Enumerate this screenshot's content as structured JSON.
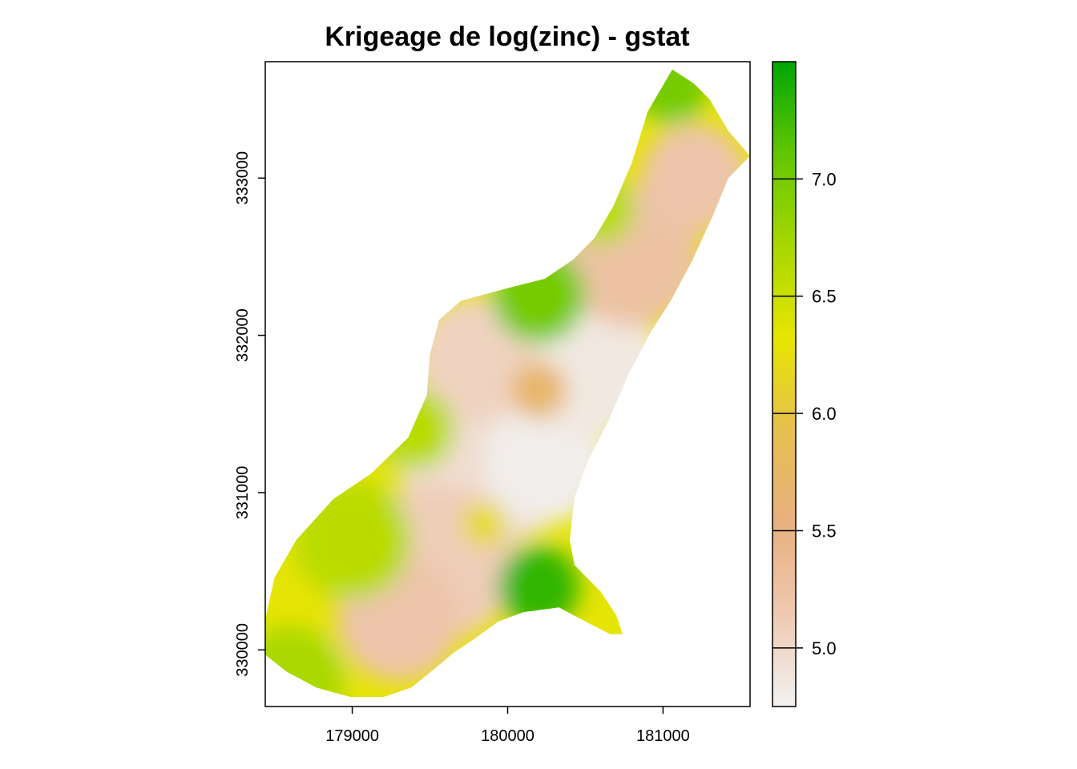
{
  "chart_data": {
    "type": "heatmap",
    "title": "Krigeage de log(zinc) - gstat",
    "xlabel": "",
    "ylabel": "",
    "xlim": [
      178440,
      181560
    ],
    "ylim": [
      329640,
      333740
    ],
    "x_ticks": [
      179000,
      180000,
      181000
    ],
    "x_tick_labels": [
      "179000",
      "180000",
      "181000"
    ],
    "y_ticks": [
      330000,
      331000,
      332000,
      333000
    ],
    "y_tick_labels": [
      "330000",
      "331000",
      "332000",
      "333000"
    ],
    "color_scale": {
      "zlim": [
        4.75,
        7.5
      ],
      "ticks": [
        5.0,
        5.5,
        6.0,
        6.5,
        7.0
      ],
      "tick_labels": [
        "5.0",
        "5.5",
        "6.0",
        "6.5",
        "7.0"
      ],
      "colors": [
        "#F2F2F2",
        "#EEC9B1",
        "#E8B07F",
        "#E6BF50",
        "#E6E600",
        "#A8D700",
        "#63C600",
        "#00A600"
      ]
    },
    "region_outline": [
      [
        181060,
        333690
      ],
      [
        181200,
        333600
      ],
      [
        181300,
        333500
      ],
      [
        181420,
        333300
      ],
      [
        181560,
        333140
      ],
      [
        181420,
        333000
      ],
      [
        181320,
        332760
      ],
      [
        181190,
        332480
      ],
      [
        181050,
        332220
      ],
      [
        180920,
        332020
      ],
      [
        180780,
        331760
      ],
      [
        180650,
        331460
      ],
      [
        180520,
        331210
      ],
      [
        180430,
        330970
      ],
      [
        180400,
        330700
      ],
      [
        180430,
        330540
      ],
      [
        180600,
        330370
      ],
      [
        180700,
        330220
      ],
      [
        180740,
        330100
      ],
      [
        180660,
        330100
      ],
      [
        180520,
        330170
      ],
      [
        180330,
        330270
      ],
      [
        180100,
        330240
      ],
      [
        179940,
        330180
      ],
      [
        179800,
        330080
      ],
      [
        179650,
        329980
      ],
      [
        179530,
        329880
      ],
      [
        179380,
        329760
      ],
      [
        179200,
        329700
      ],
      [
        178990,
        329700
      ],
      [
        178770,
        329760
      ],
      [
        178580,
        329860
      ],
      [
        178440,
        329970
      ],
      [
        178440,
        330200
      ],
      [
        178500,
        330460
      ],
      [
        178640,
        330700
      ],
      [
        178880,
        330960
      ],
      [
        179120,
        331120
      ],
      [
        179360,
        331350
      ],
      [
        179480,
        331620
      ],
      [
        179500,
        331880
      ],
      [
        179560,
        332100
      ],
      [
        179700,
        332220
      ],
      [
        180000,
        332300
      ],
      [
        180240,
        332360
      ],
      [
        180420,
        332480
      ],
      [
        180560,
        332620
      ],
      [
        180680,
        332820
      ],
      [
        180800,
        333100
      ],
      [
        180900,
        333420
      ]
    ],
    "kriged_surface": [
      {
        "x": 179880,
        "y": 331250,
        "r": 600,
        "value": 4.95
      },
      {
        "x": 180250,
        "y": 331200,
        "r": 400,
        "value": 4.8
      },
      {
        "x": 180550,
        "y": 331800,
        "r": 450,
        "value": 4.85
      },
      {
        "x": 179800,
        "y": 331850,
        "r": 400,
        "value": 5.05
      },
      {
        "x": 179550,
        "y": 330550,
        "r": 500,
        "value": 5.1
      },
      {
        "x": 179300,
        "y": 330200,
        "r": 400,
        "value": 5.2
      },
      {
        "x": 180800,
        "y": 332500,
        "r": 450,
        "value": 5.25
      },
      {
        "x": 181200,
        "y": 333000,
        "r": 350,
        "value": 5.2
      },
      {
        "x": 180200,
        "y": 331650,
        "r": 180,
        "value": 5.7
      },
      {
        "x": 179850,
        "y": 330800,
        "r": 140,
        "value": 6.2
      },
      {
        "x": 180200,
        "y": 330400,
        "r": 260,
        "value": 7.3
      },
      {
        "x": 180200,
        "y": 332250,
        "r": 300,
        "value": 7.0
      },
      {
        "x": 178600,
        "y": 329800,
        "r": 350,
        "value": 6.7
      },
      {
        "x": 179000,
        "y": 330700,
        "r": 380,
        "value": 6.6
      },
      {
        "x": 181050,
        "y": 333600,
        "r": 250,
        "value": 7.0
      },
      {
        "x": 179400,
        "y": 331400,
        "r": 260,
        "value": 6.6
      },
      {
        "x": 180600,
        "y": 332800,
        "r": 220,
        "value": 6.6
      }
    ],
    "legend": "right colorbar",
    "grid": false
  }
}
